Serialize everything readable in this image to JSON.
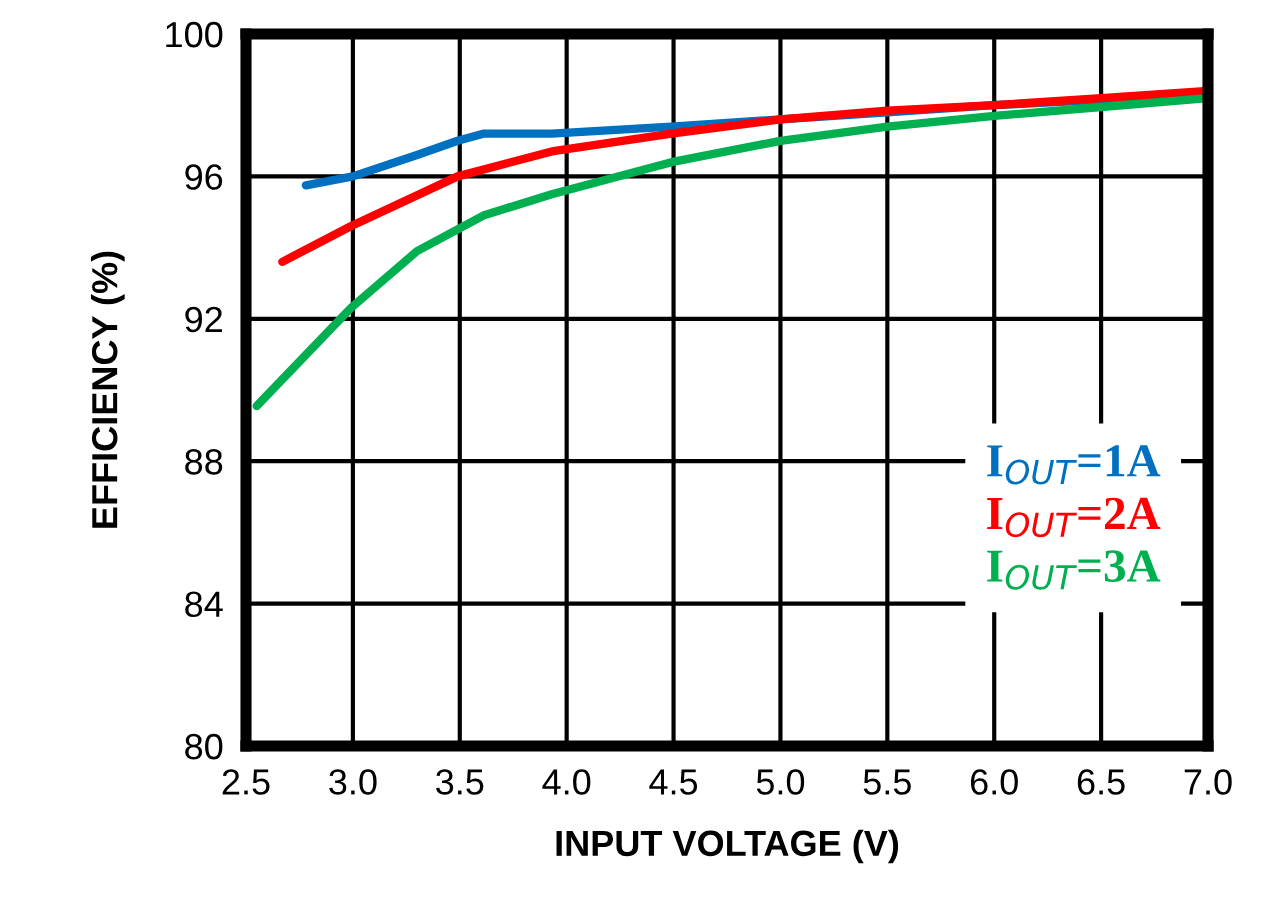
{
  "chart_data": {
    "type": "line",
    "xlabel": "INPUT VOLTAGE (V)",
    "ylabel": "EFFICIENCY (%)",
    "xlim": [
      2.5,
      7.0
    ],
    "ylim": [
      80,
      100
    ],
    "xticks": [
      {
        "value": 2.5,
        "label": "2.5"
      },
      {
        "value": 3.0,
        "label": "3.0"
      },
      {
        "value": 3.5,
        "label": "3.5"
      },
      {
        "value": 4.0,
        "label": "4.0"
      },
      {
        "value": 4.5,
        "label": "4.5"
      },
      {
        "value": 5.0,
        "label": "5.0"
      },
      {
        "value": 5.5,
        "label": "5.5"
      },
      {
        "value": 6.0,
        "label": "6.0"
      },
      {
        "value": 6.5,
        "label": "6.5"
      },
      {
        "value": 7.0,
        "label": "7.0"
      }
    ],
    "yticks": [
      80,
      84,
      88,
      92,
      96,
      100
    ],
    "grid": true,
    "legend": "bottom right",
    "series": [
      {
        "name": "I$_{OUT}$=1A",
        "color": "#0070c0",
        "x": [
          2.78,
          3.0,
          3.3,
          3.49,
          3.61,
          3.93,
          4.49,
          5.0,
          5.5,
          6.0,
          6.5,
          7.0
        ],
        "values": [
          95.75,
          96.0,
          96.6,
          97.0,
          97.2,
          97.2,
          97.4,
          97.6,
          97.8,
          98.0,
          98.15,
          98.3
        ]
      },
      {
        "name": "I$_{OUT}$=2A",
        "color": "#ff0000",
        "x": [
          2.67,
          2.99,
          3.49,
          3.93,
          4.49,
          5.0,
          5.5,
          6.0,
          6.5,
          7.0
        ],
        "values": [
          93.6,
          94.6,
          96.0,
          96.7,
          97.2,
          97.6,
          97.85,
          98.0,
          98.2,
          98.4
        ]
      },
      {
        "name": "I$_{OUT}$=3A",
        "color": "#00b050",
        "x": [
          2.55,
          2.99,
          3.3,
          3.61,
          3.93,
          4.49,
          5.0,
          5.5,
          6.0,
          6.5,
          7.0
        ],
        "values": [
          89.55,
          92.3,
          93.9,
          94.9,
          95.5,
          96.4,
          97.0,
          97.4,
          97.7,
          97.95,
          98.2
        ]
      }
    ]
  }
}
